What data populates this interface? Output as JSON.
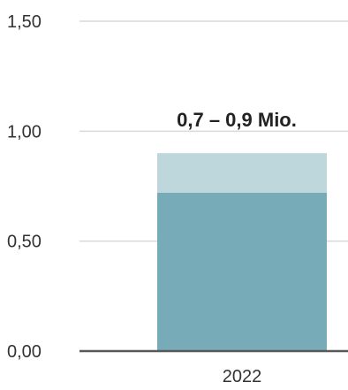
{
  "chart_data": {
    "type": "bar",
    "categories": [
      "2022"
    ],
    "series": [
      {
        "values": [
          0.72
        ],
        "color": "#77abb7"
      },
      {
        "values": [
          0.18
        ],
        "color": "#bdd7dc"
      }
    ],
    "range": {
      "low": 0.7,
      "high": 0.9
    },
    "annotation": "0,7 – 0,9 Mio.",
    "ylim": [
      0,
      1.5
    ],
    "yticks": [
      0,
      0.5,
      1.0,
      1.5
    ],
    "ytick_labels": [
      "0,00",
      "0,50",
      "1,00",
      "1,50"
    ],
    "grid": true,
    "title": "",
    "xlabel": "",
    "ylabel": ""
  },
  "colors": {
    "grid": "#d9d9d9",
    "axis": "#595959",
    "bar_main": "#77abb7",
    "bar_range": "#bdd7dc"
  }
}
